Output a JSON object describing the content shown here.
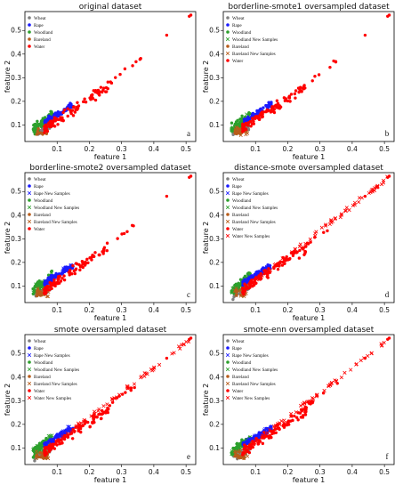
{
  "chart_data": [
    {
      "type": "scatter",
      "panel_letter": "a",
      "title": "original dataset",
      "xlabel": "feature 1",
      "ylabel": "feature 2",
      "xlim": [
        0.0,
        0.53
      ],
      "ylim": [
        0.03,
        0.58
      ],
      "xticks": [
        0.1,
        0.2,
        0.3,
        0.4,
        0.5
      ],
      "yticks": [
        0.1,
        0.2,
        0.3,
        0.4,
        0.5
      ],
      "grid": false,
      "legend_position": "upper-left",
      "series": [
        {
          "name": "Wheat",
          "color": "#7f7f7f",
          "marker": "dot"
        },
        {
          "name": "Rape",
          "color": "#1a1aff",
          "marker": "dot"
        },
        {
          "name": "Woodland",
          "color": "#2ca02c",
          "marker": "dot"
        },
        {
          "name": "Bareland",
          "color": "#b85c1a",
          "marker": "dot"
        },
        {
          "name": "Water",
          "color": "#ff0000",
          "marker": "dot"
        }
      ],
      "outliers": [
        [
          0.44,
          0.48
        ],
        [
          0.51,
          0.56
        ],
        [
          0.515,
          0.565
        ]
      ]
    },
    {
      "type": "scatter",
      "panel_letter": "b",
      "title": "borderline-smote1 oversampled dataset",
      "xlabel": "feature 1",
      "ylabel": "feature 2",
      "xlim": [
        0.0,
        0.53
      ],
      "ylim": [
        0.03,
        0.58
      ],
      "xticks": [
        0.1,
        0.2,
        0.3,
        0.4,
        0.5
      ],
      "yticks": [
        0.1,
        0.2,
        0.3,
        0.4,
        0.5
      ],
      "grid": false,
      "legend_position": "upper-left",
      "series": [
        {
          "name": "Wheat",
          "color": "#7f7f7f",
          "marker": "dot"
        },
        {
          "name": "Rape",
          "color": "#1a1aff",
          "marker": "dot"
        },
        {
          "name": "Woodland",
          "color": "#2ca02c",
          "marker": "dot"
        },
        {
          "name": "Woodland New Samples",
          "color": "#2ca02c",
          "marker": "cross"
        },
        {
          "name": "Bareland",
          "color": "#b85c1a",
          "marker": "dot"
        },
        {
          "name": "Bareland New Samples",
          "color": "#b85c1a",
          "marker": "cross"
        },
        {
          "name": "Water",
          "color": "#ff0000",
          "marker": "dot"
        }
      ],
      "outliers": [
        [
          0.44,
          0.48
        ],
        [
          0.51,
          0.56
        ],
        [
          0.515,
          0.565
        ]
      ]
    },
    {
      "type": "scatter",
      "panel_letter": "c",
      "title": "borderline-smote2 oversampled dataset",
      "xlabel": "feature 1",
      "ylabel": "feature 2",
      "xlim": [
        0.0,
        0.53
      ],
      "ylim": [
        0.03,
        0.58
      ],
      "xticks": [
        0.1,
        0.2,
        0.3,
        0.4,
        0.5
      ],
      "yticks": [
        0.1,
        0.2,
        0.3,
        0.4,
        0.5
      ],
      "grid": false,
      "legend_position": "upper-left",
      "series": [
        {
          "name": "Wheat",
          "color": "#7f7f7f",
          "marker": "dot"
        },
        {
          "name": "Rape",
          "color": "#1a1aff",
          "marker": "dot"
        },
        {
          "name": "Rape New Samples",
          "color": "#1a1aff",
          "marker": "cross"
        },
        {
          "name": "Woodland",
          "color": "#2ca02c",
          "marker": "dot"
        },
        {
          "name": "Woodland New Samples",
          "color": "#2ca02c",
          "marker": "cross"
        },
        {
          "name": "Bareland",
          "color": "#b85c1a",
          "marker": "dot"
        },
        {
          "name": "Bareland New Samples",
          "color": "#b85c1a",
          "marker": "cross"
        },
        {
          "name": "Water",
          "color": "#ff0000",
          "marker": "dot"
        }
      ],
      "outliers": [
        [
          0.44,
          0.48
        ],
        [
          0.51,
          0.56
        ],
        [
          0.515,
          0.565
        ]
      ]
    },
    {
      "type": "scatter",
      "panel_letter": "d",
      "title": "distance-smote oversampled dataset",
      "xlabel": "feature 1",
      "ylabel": "feature 2",
      "xlim": [
        0.0,
        0.53
      ],
      "ylim": [
        0.03,
        0.58
      ],
      "xticks": [
        0.1,
        0.2,
        0.3,
        0.4,
        0.5
      ],
      "yticks": [
        0.1,
        0.2,
        0.3,
        0.4,
        0.5
      ],
      "grid": false,
      "legend_position": "upper-left",
      "series": [
        {
          "name": "Wheat",
          "color": "#7f7f7f",
          "marker": "dot"
        },
        {
          "name": "Rape",
          "color": "#1a1aff",
          "marker": "dot"
        },
        {
          "name": "Rape New Samples",
          "color": "#1a1aff",
          "marker": "cross"
        },
        {
          "name": "Woodland",
          "color": "#2ca02c",
          "marker": "dot"
        },
        {
          "name": "Woodland New Samples",
          "color": "#2ca02c",
          "marker": "cross"
        },
        {
          "name": "Bareland",
          "color": "#b85c1a",
          "marker": "dot"
        },
        {
          "name": "Bareland New Samples",
          "color": "#b85c1a",
          "marker": "cross"
        },
        {
          "name": "Water",
          "color": "#ff0000",
          "marker": "dot"
        },
        {
          "name": "Water New Samples",
          "color": "#ff0000",
          "marker": "cross"
        }
      ],
      "outliers": [
        [
          0.44,
          0.48
        ],
        [
          0.51,
          0.56
        ],
        [
          0.515,
          0.565
        ]
      ]
    },
    {
      "type": "scatter",
      "panel_letter": "e",
      "title": "smote oversampled dataset",
      "xlabel": "feature 1",
      "ylabel": "feature 2",
      "xlim": [
        0.0,
        0.53
      ],
      "ylim": [
        0.03,
        0.58
      ],
      "xticks": [
        0.1,
        0.2,
        0.3,
        0.4,
        0.5
      ],
      "yticks": [
        0.1,
        0.2,
        0.3,
        0.4,
        0.5
      ],
      "grid": false,
      "legend_position": "upper-left",
      "series": [
        {
          "name": "Wheat",
          "color": "#7f7f7f",
          "marker": "dot"
        },
        {
          "name": "Rape",
          "color": "#1a1aff",
          "marker": "dot"
        },
        {
          "name": "Rape New Samples",
          "color": "#1a1aff",
          "marker": "cross"
        },
        {
          "name": "Woodland",
          "color": "#2ca02c",
          "marker": "dot"
        },
        {
          "name": "Woodland New Samples",
          "color": "#2ca02c",
          "marker": "cross"
        },
        {
          "name": "Bareland",
          "color": "#b85c1a",
          "marker": "dot"
        },
        {
          "name": "Bareland New Samples",
          "color": "#b85c1a",
          "marker": "cross"
        },
        {
          "name": "Water",
          "color": "#ff0000",
          "marker": "dot"
        },
        {
          "name": "Water New Samples",
          "color": "#ff0000",
          "marker": "cross"
        }
      ],
      "outliers": [
        [
          0.44,
          0.48
        ],
        [
          0.51,
          0.56
        ],
        [
          0.515,
          0.565
        ]
      ]
    },
    {
      "type": "scatter",
      "panel_letter": "f",
      "title": "smote-enn oversampled dataset",
      "xlabel": "feature 1",
      "ylabel": "feature 2",
      "xlim": [
        0.0,
        0.53
      ],
      "ylim": [
        0.03,
        0.58
      ],
      "xticks": [
        0.1,
        0.2,
        0.3,
        0.4,
        0.5
      ],
      "yticks": [
        0.1,
        0.2,
        0.3,
        0.4,
        0.5
      ],
      "grid": false,
      "legend_position": "upper-left",
      "series": [
        {
          "name": "Wheat",
          "color": "#7f7f7f",
          "marker": "dot"
        },
        {
          "name": "Rape",
          "color": "#1a1aff",
          "marker": "dot"
        },
        {
          "name": "Rape New Samples",
          "color": "#1a1aff",
          "marker": "cross"
        },
        {
          "name": "Woodland",
          "color": "#2ca02c",
          "marker": "dot"
        },
        {
          "name": "Woodland New Samples",
          "color": "#2ca02c",
          "marker": "cross"
        },
        {
          "name": "Bareland",
          "color": "#b85c1a",
          "marker": "dot"
        },
        {
          "name": "Bareland New Samples",
          "color": "#b85c1a",
          "marker": "cross"
        },
        {
          "name": "Water",
          "color": "#ff0000",
          "marker": "dot"
        },
        {
          "name": "Water New Samples",
          "color": "#ff0000",
          "marker": "cross"
        }
      ],
      "outliers": [
        [
          0.44,
          0.48
        ],
        [
          0.51,
          0.56
        ],
        [
          0.515,
          0.565
        ]
      ]
    }
  ]
}
